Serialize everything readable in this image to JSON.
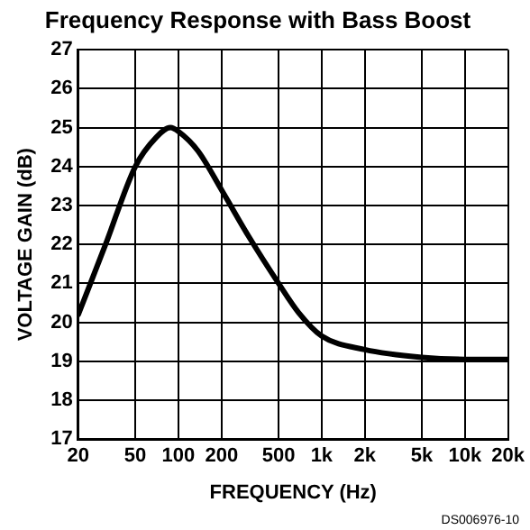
{
  "chart_data": {
    "type": "line",
    "title": "Frequency Response with Bass Boost",
    "xlabel": "FREQUENCY (Hz)",
    "ylabel": "VOLTAGE GAIN (dB)",
    "annotations": [
      "DS006976-10"
    ],
    "log": "x",
    "grid": true,
    "legend": false,
    "marker": "none",
    "line_style": "solid",
    "xlim": [
      20,
      20000
    ],
    "xticks": [
      20,
      50,
      100,
      200,
      500,
      {
        "value": 1000,
        "label": "1k"
      },
      {
        "value": 2000,
        "label": "2k"
      },
      {
        "value": 5000,
        "label": "5k"
      },
      {
        "value": 10000,
        "label": "10k"
      },
      {
        "value": 20000,
        "label": "20k"
      }
    ],
    "ylim": [
      17,
      27
    ],
    "yticks": [
      17,
      18,
      19,
      20,
      21,
      22,
      23,
      24,
      25,
      26,
      27
    ],
    "series": [
      {
        "color": "#000000",
        "x": [
          20,
          31,
          50,
          70,
          88,
          100,
          137,
          200,
          310,
          500,
          690,
          1000,
          2000,
          5000,
          10000,
          20000
        ],
        "values": [
          20.2,
          22.0,
          24.0,
          24.75,
          25.0,
          24.9,
          24.4,
          23.4,
          22.2,
          21.0,
          20.25,
          19.65,
          19.3,
          19.1,
          19.05,
          19.05
        ]
      }
    ]
  }
}
